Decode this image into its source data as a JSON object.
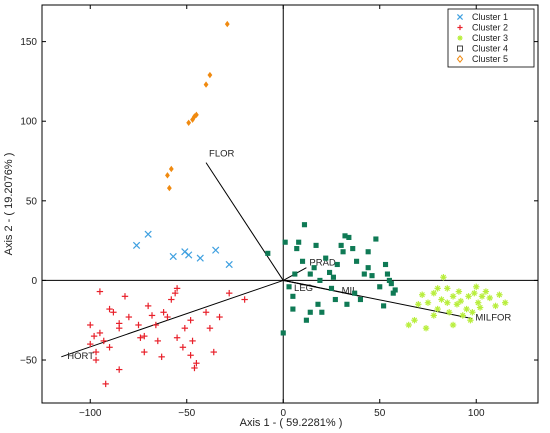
{
  "chart_data": {
    "type": "scatter",
    "title": "",
    "xlabel": "Axis 1 - ( 59.2281% )",
    "ylabel": "Axis 2 - ( 19.2076% )",
    "xlim": [
      -125,
      132
    ],
    "ylim": [
      -77,
      173
    ],
    "xticks": [
      -100,
      -50,
      0,
      50,
      100
    ],
    "yticks": [
      -50,
      0,
      50,
      100,
      150
    ],
    "legend_position": "top-right",
    "series": [
      {
        "name": "Cluster 1",
        "marker": "x",
        "color": "#3fa0e0",
        "points": [
          [
            -76,
            22
          ],
          [
            -70,
            29
          ],
          [
            -57,
            15
          ],
          [
            -51,
            18
          ],
          [
            -49,
            16
          ],
          [
            -43,
            14
          ],
          [
            -35,
            19
          ],
          [
            -28,
            10
          ]
        ]
      },
      {
        "name": "Cluster 2",
        "marker": "plus",
        "color": "#e8202a",
        "points": [
          [
            -95,
            -7
          ],
          [
            -90,
            -18
          ],
          [
            -88,
            -20
          ],
          [
            -85,
            -27
          ],
          [
            -80,
            -23
          ],
          [
            -100,
            -40
          ],
          [
            -98,
            -35
          ],
          [
            -97,
            -45
          ],
          [
            -95,
            -33
          ],
          [
            -93,
            -38
          ],
          [
            -90,
            -42
          ],
          [
            -85,
            -30
          ],
          [
            -82,
            -10
          ],
          [
            -75,
            -28
          ],
          [
            -74,
            -36
          ],
          [
            -72,
            -35
          ],
          [
            -72,
            -45
          ],
          [
            -70,
            -16
          ],
          [
            -68,
            -22
          ],
          [
            -66,
            -28
          ],
          [
            -65,
            -38
          ],
          [
            -63,
            -48
          ],
          [
            -60,
            -23
          ],
          [
            -58,
            -12
          ],
          [
            -56,
            -8
          ],
          [
            -55,
            -36
          ],
          [
            -52,
            -42
          ],
          [
            -51,
            -30
          ],
          [
            -48,
            -25
          ],
          [
            -47,
            -38
          ],
          [
            -46,
            -55
          ],
          [
            -45,
            -52
          ],
          [
            -40,
            -20
          ],
          [
            -38,
            -30
          ],
          [
            -36,
            -45
          ],
          [
            -33,
            -23
          ],
          [
            -28,
            -8
          ],
          [
            -20,
            -12
          ],
          [
            -92,
            -65
          ],
          [
            -85,
            -56
          ],
          [
            -97,
            -50
          ],
          [
            -100,
            -28
          ],
          [
            -62,
            -20
          ],
          [
            -55,
            -5
          ],
          [
            -48,
            -47
          ]
        ]
      },
      {
        "name": "Cluster 3",
        "marker": "star",
        "color": "#b8ee3c",
        "points": [
          [
            72,
            -9
          ],
          [
            75,
            -14
          ],
          [
            78,
            -8
          ],
          [
            80,
            -18
          ],
          [
            80,
            -5
          ],
          [
            82,
            -12
          ],
          [
            83,
            2
          ],
          [
            85,
            -14
          ],
          [
            86,
            -20
          ],
          [
            88,
            -10
          ],
          [
            90,
            -15
          ],
          [
            91,
            -7
          ],
          [
            92,
            -13
          ],
          [
            95,
            -18
          ],
          [
            96,
            -10
          ],
          [
            97,
            -25
          ],
          [
            98,
            -20
          ],
          [
            100,
            -4
          ],
          [
            101,
            -14
          ],
          [
            103,
            -10
          ],
          [
            105,
            -7
          ],
          [
            107,
            -11
          ],
          [
            110,
            -16
          ],
          [
            112,
            -9
          ],
          [
            115,
            -14
          ],
          [
            68,
            -25
          ],
          [
            70,
            -15
          ],
          [
            74,
            -30
          ],
          [
            65,
            -28
          ],
          [
            88,
            -28
          ],
          [
            99,
            -8
          ],
          [
            78,
            -22
          ],
          [
            85,
            -5
          ],
          [
            93,
            -22
          ],
          [
            102,
            -17
          ]
        ]
      },
      {
        "name": "Cluster 4",
        "marker": "square",
        "color": "#0f7a55",
        "points": [
          [
            -8,
            17
          ],
          [
            1,
            24
          ],
          [
            3,
            -4
          ],
          [
            5,
            -10
          ],
          [
            5,
            -18
          ],
          [
            7,
            20
          ],
          [
            8,
            24
          ],
          [
            10,
            12
          ],
          [
            11,
            35
          ],
          [
            12,
            -25
          ],
          [
            14,
            4
          ],
          [
            16,
            8
          ],
          [
            17,
            22
          ],
          [
            18,
            -15
          ],
          [
            20,
            -20
          ],
          [
            22,
            14
          ],
          [
            24,
            5
          ],
          [
            25,
            -5
          ],
          [
            27,
            -12
          ],
          [
            28,
            10
          ],
          [
            30,
            22
          ],
          [
            31,
            18
          ],
          [
            32,
            28
          ],
          [
            34,
            27
          ],
          [
            36,
            20
          ],
          [
            37,
            -8
          ],
          [
            38,
            12
          ],
          [
            40,
            -12
          ],
          [
            42,
            4
          ],
          [
            44,
            18
          ],
          [
            46,
            3
          ],
          [
            48,
            26
          ],
          [
            50,
            -4
          ],
          [
            53,
            10
          ],
          [
            54,
            4
          ],
          [
            55,
            0
          ],
          [
            56,
            -2
          ],
          [
            57,
            -8
          ],
          [
            58,
            -6
          ],
          [
            52,
            -16
          ],
          [
            0,
            -33
          ],
          [
            6,
            4
          ],
          [
            14,
            -20
          ],
          [
            26,
            2
          ],
          [
            33,
            -15
          ],
          [
            44,
            8
          ],
          [
            19,
            0
          ]
        ]
      },
      {
        "name": "Cluster 5",
        "marker": "diamond",
        "color": "#f08a10",
        "points": [
          [
            -59,
            58
          ],
          [
            -60,
            66
          ],
          [
            -58,
            70
          ],
          [
            -49,
            99
          ],
          [
            -47,
            101
          ],
          [
            -46,
            103
          ],
          [
            -45,
            104
          ],
          [
            -40,
            123
          ],
          [
            -38,
            129
          ],
          [
            -29,
            161
          ]
        ]
      }
    ],
    "vectors": [
      {
        "label": "FLOR",
        "x": -40,
        "y": 74
      },
      {
        "label": "PRAD",
        "x": 12,
        "y": 8
      },
      {
        "label": "LEG",
        "x": 17,
        "y": -4
      },
      {
        "label": "MIL",
        "x": 40,
        "y": -10
      },
      {
        "label": "MILFOR",
        "x": 98,
        "y": -24
      },
      {
        "label": "HORT",
        "x": -115,
        "y": -48
      }
    ]
  }
}
